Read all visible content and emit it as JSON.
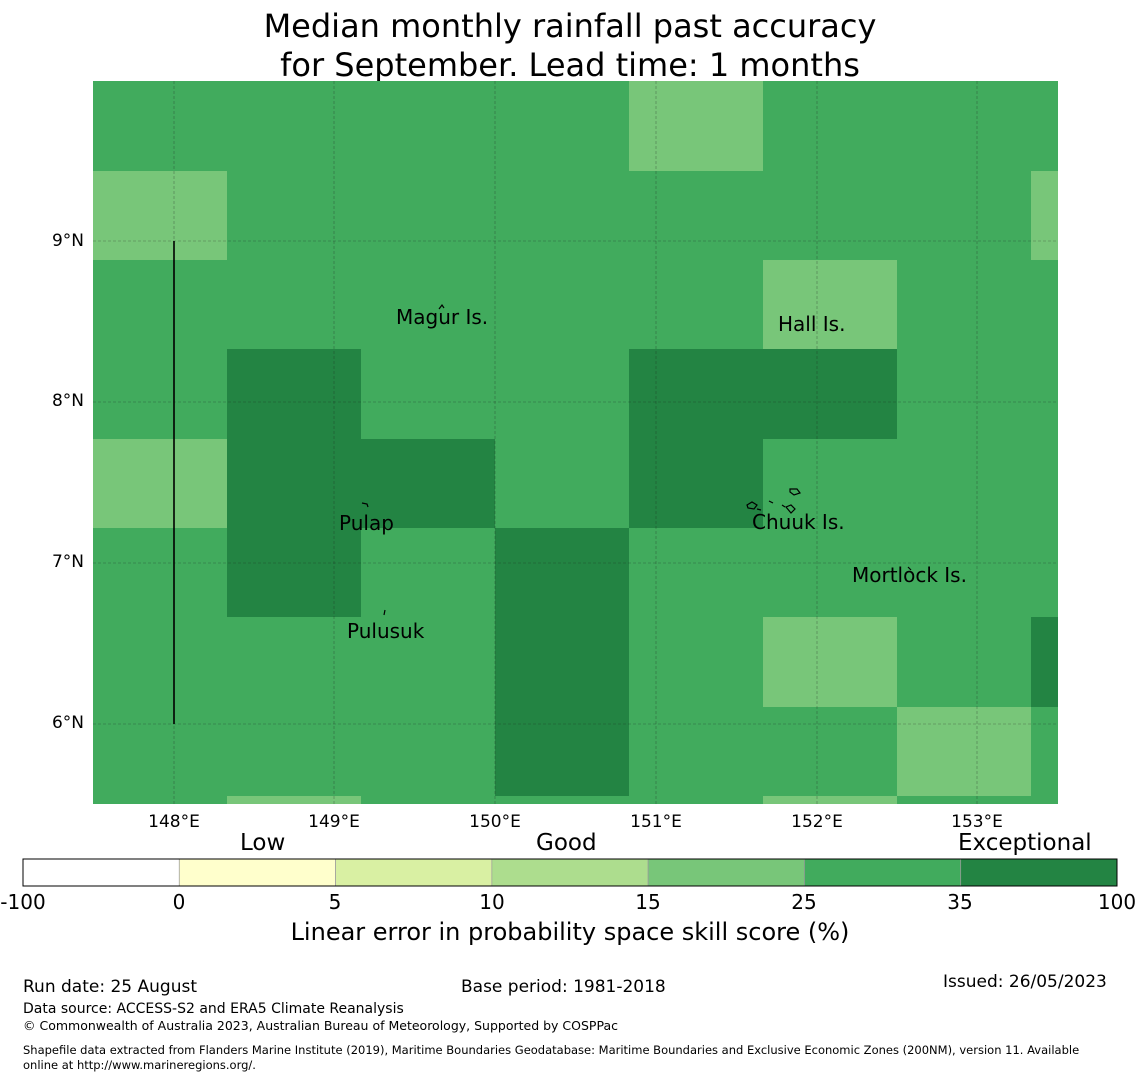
{
  "title_line1": "Median monthly rainfall past accuracy",
  "title_line2": "for September. Lead time: 1 months",
  "map": {
    "lon_range": [
      147.5,
      153.5
    ],
    "lat_range": [
      5.5,
      10.0
    ],
    "x_ticks": [
      "148°E",
      "149°E",
      "150°E",
      "151°E",
      "152°E",
      "153°E"
    ],
    "y_ticks": [
      "9°N",
      "8°N",
      "7°N",
      "6°N"
    ],
    "gridlines": true,
    "cell_colors": {
      "light": "#78c679",
      "medium": "#41ab5d",
      "dark": "#238443"
    },
    "places": [
      {
        "name": "Magur Is."
      },
      {
        "name": "Hall Is."
      },
      {
        "name": "Pulap"
      },
      {
        "name": "Chuuk Is."
      },
      {
        "name": "Mortlock Is."
      },
      {
        "name": "Pulusuk"
      }
    ]
  },
  "colorbar": {
    "categories": [
      "Low",
      "Good",
      "Exceptional"
    ],
    "ticks": [
      "-100",
      "0",
      "5",
      "10",
      "15",
      "25",
      "35",
      "100"
    ],
    "colors": [
      "#ffffff",
      "#ffffcc",
      "#d9f0a3",
      "#addd8e",
      "#78c679",
      "#41ab5d",
      "#238443"
    ],
    "label": "Linear error in probability space skill score (%)"
  },
  "footer": {
    "run_date": "Run date: 25 August",
    "base_period": "Base period: 1981-2018",
    "issued": "Issued: 26/05/2023",
    "data_source": "Data source: ACCESS-S2 and ERA5 Climate Reanalysis",
    "copyright": "© Commonwealth of Australia 2023, Australian Bureau of Meteorology, Supported by COSPPac",
    "shapefile_line1": "Shapefile data extracted from Flanders Marine Institute (2019), Maritime Boundaries Geodatabase: Maritime Boundaries and Exclusive Economic Zones (200NM), version 11. Available",
    "shapefile_line2": "online at http://www.marineregions.org/."
  }
}
